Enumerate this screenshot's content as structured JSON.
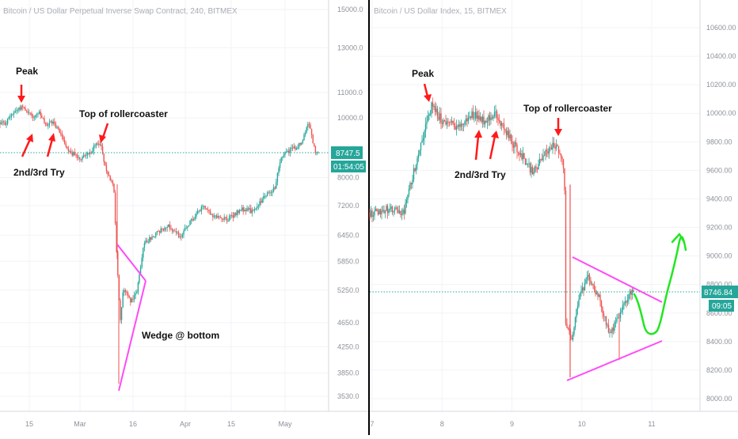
{
  "chart_data": [
    {
      "type": "candlestick",
      "title": "Bitcoin / US Dollar Perpetual Inverse Swap Contract, 240, BITMEX",
      "y_scale": "log",
      "ylim": [
        3300,
        16500
      ],
      "y_ticks": [
        "15000.0",
        "13000.0",
        "11000.0",
        "10000.0",
        "8000.0",
        "7200.0",
        "6450.0",
        "5850.0",
        "5250.0",
        "4650.0",
        "4250.0",
        "3850.0",
        "3530.0"
      ],
      "x_ticks": [
        "15",
        "Mar",
        "16",
        "Apr",
        "15",
        "May"
      ],
      "current_price": "8747.5",
      "countdown": "01:54:05",
      "price_path": [
        [
          "2020-02-08",
          9800
        ],
        [
          "2020-02-10",
          10200
        ],
        [
          "2020-02-13",
          10450
        ],
        [
          "2020-02-16",
          10050
        ],
        [
          "2020-02-18",
          10150
        ],
        [
          "2020-02-20",
          9700
        ],
        [
          "2020-02-22",
          9850
        ],
        [
          "2020-02-24",
          9500
        ],
        [
          "2020-02-27",
          8800
        ],
        [
          "2020-03-01",
          8600
        ],
        [
          "2020-03-04",
          8800
        ],
        [
          "2020-03-07",
          9150
        ],
        [
          "2020-03-09",
          8100
        ],
        [
          "2020-03-11",
          7850
        ],
        [
          "2020-03-12",
          5900
        ],
        [
          "2020-03-13",
          4650
        ],
        [
          "2020-03-14",
          5300
        ],
        [
          "2020-03-16",
          5050
        ],
        [
          "2020-03-18",
          5200
        ],
        [
          "2020-03-20",
          6250
        ],
        [
          "2020-03-24",
          6500
        ],
        [
          "2020-03-27",
          6700
        ],
        [
          "2020-03-31",
          6400
        ],
        [
          "2020-04-03",
          6800
        ],
        [
          "2020-04-07",
          7200
        ],
        [
          "2020-04-10",
          6900
        ],
        [
          "2020-04-14",
          6850
        ],
        [
          "2020-04-18",
          7100
        ],
        [
          "2020-04-22",
          7050
        ],
        [
          "2020-04-25",
          7500
        ],
        [
          "2020-04-28",
          7700
        ],
        [
          "2020-04-30",
          8700
        ],
        [
          "2020-05-03",
          8900
        ],
        [
          "2020-05-06",
          9100
        ],
        [
          "2020-05-08",
          9900
        ],
        [
          "2020-05-10",
          8747.5
        ]
      ],
      "annotations": [
        {
          "text": "Peak"
        },
        {
          "text": "2nd/3rd Try"
        },
        {
          "text": "Top of rollercoaster"
        },
        {
          "text": "Wedge @ bottom"
        }
      ]
    },
    {
      "type": "candlestick",
      "title": "Bitcoin / US Dollar Index, 15, BITMEX",
      "y_scale": "linear",
      "ylim": [
        7950,
        10750
      ],
      "y_ticks": [
        "10600.00",
        "10400.00",
        "10200.00",
        "10000.00",
        "9800.00",
        "9600.00",
        "9400.00",
        "9200.00",
        "9000.00",
        "8800.00",
        "8600.00",
        "8400.00",
        "8200.00",
        "8000.00"
      ],
      "x_ticks": [
        "7",
        "8",
        "9",
        "10",
        "11"
      ],
      "current_price": "8746.84",
      "countdown": "09:05",
      "price_path": [
        [
          "7.00",
          9300
        ],
        [
          "7.20",
          9330
        ],
        [
          "7.45",
          9300
        ],
        [
          "7.55",
          9500
        ],
        [
          "7.70",
          9800
        ],
        [
          "7.85",
          10050
        ],
        [
          "8.00",
          9950
        ],
        [
          "8.25",
          9900
        ],
        [
          "8.45",
          10000
        ],
        [
          "8.60",
          9950
        ],
        [
          "8.75",
          10000
        ],
        [
          "9.00",
          9800
        ],
        [
          "9.15",
          9700
        ],
        [
          "9.30",
          9580
        ],
        [
          "9.45",
          9700
        ],
        [
          "9.60",
          9780
        ],
        [
          "9.70",
          9730
        ],
        [
          "9.75",
          9550
        ],
        [
          "9.76",
          9350
        ],
        [
          "9.77",
          8550
        ],
        [
          "9.85",
          8400
        ],
        [
          "9.95",
          8700
        ],
        [
          "10.10",
          8850
        ],
        [
          "10.25",
          8700
        ],
        [
          "10.40",
          8450
        ],
        [
          "10.55",
          8600
        ],
        [
          "10.70",
          8750
        ],
        [
          "10.78",
          8746.84
        ]
      ],
      "annotations": [
        {
          "text": "Peak"
        },
        {
          "text": "2nd/3rd Try"
        },
        {
          "text": "Top of rollercoaster"
        }
      ]
    }
  ],
  "colors": {
    "up": "#26a69a",
    "down": "#ef5350",
    "annotation_arrow": "#ff1a1a",
    "wedge": "#ff4af7",
    "projection": "#22e622",
    "current_price_line": "#26a69a",
    "badge": "#26a69a",
    "divider": "#000000",
    "grid": "#f1f3f6"
  }
}
